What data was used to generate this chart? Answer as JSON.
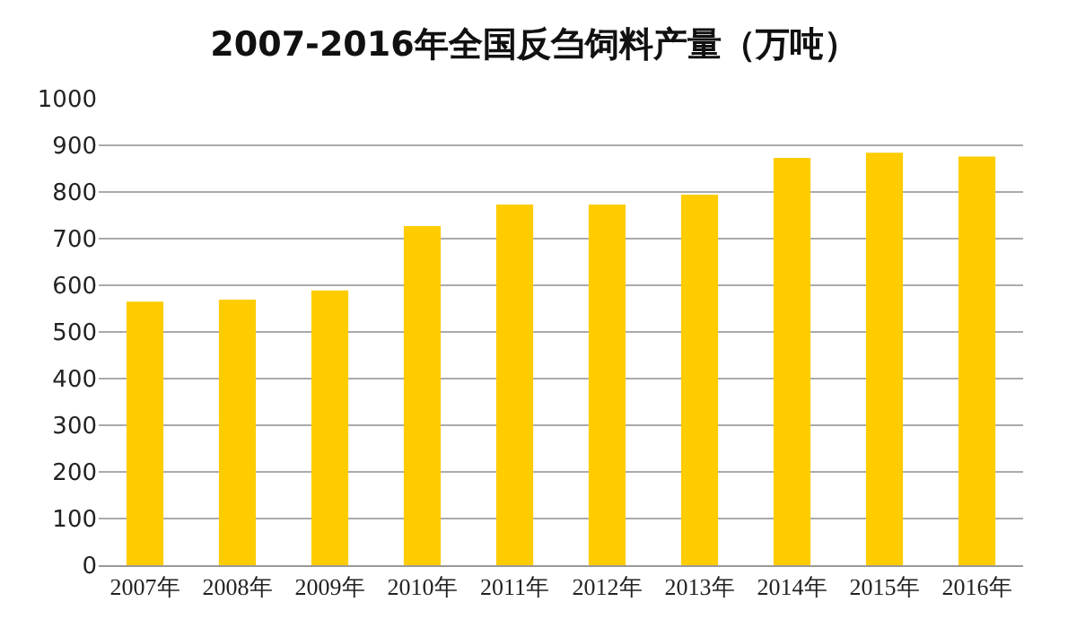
{
  "chart_data": {
    "type": "bar",
    "title": "2007-2016年全国反刍饲料产量（万吨）",
    "categories": [
      "2007年",
      "2008年",
      "2009年",
      "2010年",
      "2011年",
      "2012年",
      "2013年",
      "2014年",
      "2015年",
      "2016年"
    ],
    "values": [
      565,
      569,
      589,
      727,
      773,
      773,
      794,
      873,
      884,
      876
    ],
    "color": "#ffcc00",
    "ylim": [
      0,
      1000
    ],
    "yticks": [
      0,
      100,
      200,
      300,
      400,
      500,
      600,
      700,
      800,
      900,
      1000
    ],
    "grid": "y"
  }
}
